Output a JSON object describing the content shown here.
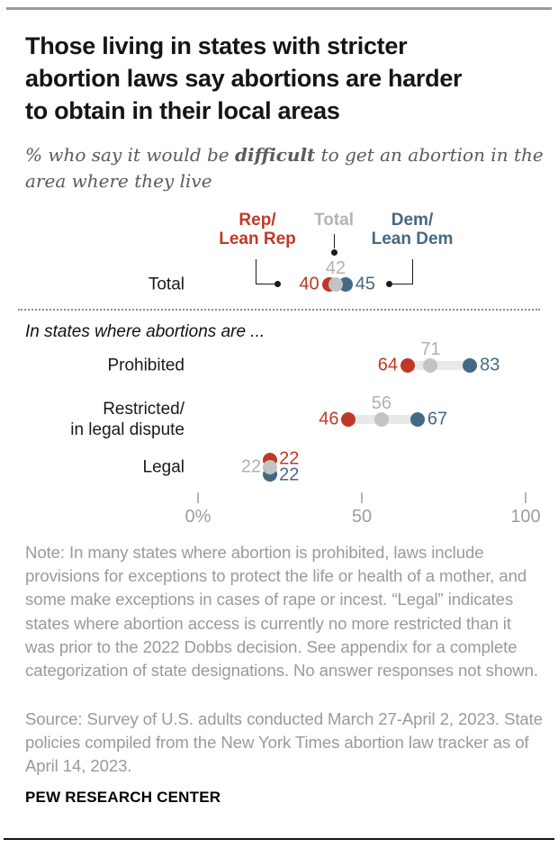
{
  "header": {
    "title_lines": [
      "Those living in states with stricter",
      "abortion laws say abortions are harder",
      "to obtain in their local areas"
    ],
    "subtitle_prefix": "% who say it would be ",
    "subtitle_bold": "difficult",
    "subtitle_suffix": " to get an abortion in the area where they live"
  },
  "chart_data": {
    "type": "dot-plot-dumbbell",
    "title": "% who say it would be difficult to get an abortion in the area where they live",
    "section_label": "In states where abortions are ...",
    "categories": [
      "Total",
      "Prohibited",
      "Restricted/\nin legal dispute",
      "Legal"
    ],
    "series": [
      {
        "key": "rep",
        "name": "Rep/\nLean Rep",
        "color": "#bf3927",
        "values": [
          40,
          64,
          46,
          22
        ]
      },
      {
        "key": "total",
        "name": "Total",
        "color": "#c3c3c3",
        "label_color": "#b1b1b1",
        "values": [
          42,
          71,
          56,
          22
        ]
      },
      {
        "key": "dem",
        "name": "Dem/\nLean Dem",
        "color": "#436983",
        "values": [
          45,
          83,
          67,
          22
        ]
      }
    ],
    "x_axis": {
      "tick_labels": [
        "0%",
        "50",
        "100"
      ],
      "tick_values": [
        0,
        50,
        100
      ],
      "range": [
        0,
        100
      ]
    },
    "legend_position": "top",
    "grid": false
  },
  "notes": {
    "note": "Note: In many states where abortion is prohibited, laws include provisions for exceptions to protect the life or health of a mother, and some make exceptions in cases of rape or incest. “Legal” indicates states where abortion access is currently no more restricted than it was prior to the 2022 Dobbs decision. See appendix for a complete categorization of state designations. No answer responses not shown.",
    "source": "Source: Survey of U.S. adults conducted March 27-April 2, 2023. State policies compiled from the New York Times abortion law tracker as of April 14, 2023.",
    "footer": "PEW RESEARCH CENTER"
  }
}
